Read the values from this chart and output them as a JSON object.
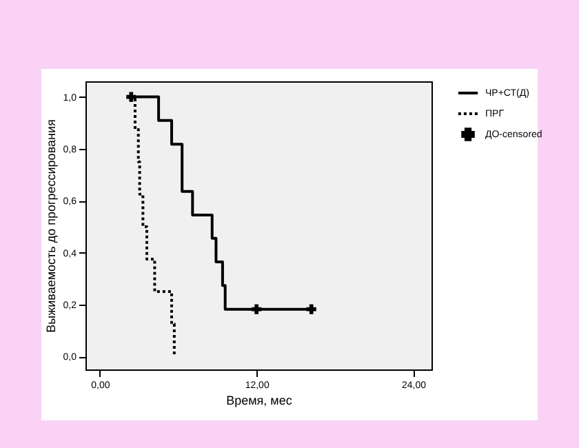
{
  "chart_data": {
    "type": "step",
    "xlabel": "Время, мес",
    "ylabel": "Выживаемость до прогрессирования",
    "xlim": [
      -1.1,
      25.4
    ],
    "ylim": [
      -0.05,
      1.06
    ],
    "xticks": [
      {
        "value": 0,
        "label": "0,00"
      },
      {
        "value": 12,
        "label": "12,00"
      },
      {
        "value": 24,
        "label": "24,00"
      }
    ],
    "yticks": [
      {
        "value": 0,
        "label": "0,0"
      },
      {
        "value": 0.2,
        "label": "0,2"
      },
      {
        "value": 0.4,
        "label": "0,4"
      },
      {
        "value": 0.6,
        "label": "0,6"
      },
      {
        "value": 0.8,
        "label": "0,8"
      },
      {
        "value": 1,
        "label": "1,0"
      }
    ],
    "grid": false,
    "legend": "right",
    "series": [
      {
        "name": "ЧР+СТ(Д)",
        "color": "#000000",
        "line_style": "solid",
        "x": [
          2.4,
          4.5,
          5.5,
          6.3,
          7.1,
          8.6,
          8.9,
          9.4,
          9.6,
          16.2
        ],
        "values": [
          1,
          0.909,
          0.818,
          0.636,
          0.545,
          0.455,
          0.364,
          0.273,
          0.182,
          0.182
        ]
      },
      {
        "name": "ПРГ",
        "color": "#000000",
        "line_style": "dotted",
        "x": [
          2.4,
          2.7,
          2.95,
          3.05,
          3.3,
          3.6,
          4.2,
          5.5,
          5.7
        ],
        "values": [
          1,
          0.875,
          0.75,
          0.625,
          0.5,
          0.375,
          0.25,
          0.125,
          0
        ]
      },
      {
        "name": "ДО-censored",
        "type": "scatter",
        "marker": "cross",
        "color": "#000000",
        "x": [
          2.4,
          12,
          16.2
        ],
        "values": [
          1,
          0.182,
          0.182
        ]
      }
    ]
  }
}
